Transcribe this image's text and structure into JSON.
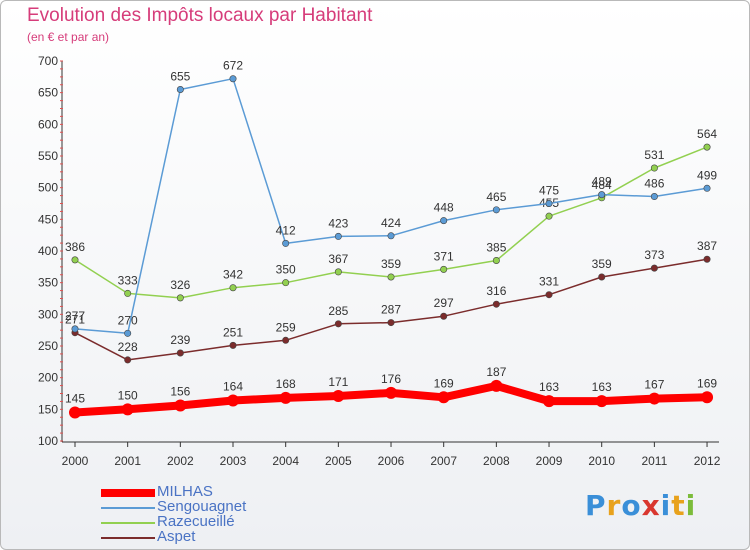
{
  "title": "Evolution des Impôts locaux par Habitant",
  "subtitle": "(en € et par an)",
  "logo": {
    "letters": [
      "P",
      "r",
      "o",
      "x",
      "i",
      "t",
      "i"
    ],
    "colors": [
      "#3a8fd8",
      "#e8a21c",
      "#3a8fd8",
      "#d9372f",
      "#3a8fd8",
      "#e8a21c",
      "#7cbc3a"
    ]
  },
  "chart_data": {
    "type": "line",
    "title": "Evolution des Impôts locaux par Habitant",
    "subtitle": "(en € et par an)",
    "xlabel": "",
    "ylabel": "",
    "x": [
      "2000",
      "2001",
      "2002",
      "2003",
      "2004",
      "2005",
      "2006",
      "2007",
      "2008",
      "2009",
      "2010",
      "2011",
      "2012"
    ],
    "ylim": [
      100,
      700
    ],
    "yticks": [
      "100",
      "150",
      "200",
      "250",
      "300",
      "350",
      "400",
      "450",
      "500",
      "550",
      "600",
      "650",
      "700"
    ],
    "grid": false,
    "legend_placement": "bottom-left",
    "series": [
      {
        "name": "MILHAS",
        "color": "#ff0000",
        "values": [
          145,
          150,
          156,
          164,
          168,
          171,
          176,
          169,
          187,
          163,
          163,
          167,
          169
        ]
      },
      {
        "name": "Sengouagnet",
        "color": "#5b9bd5",
        "values": [
          277,
          270,
          655,
          672,
          412,
          423,
          424,
          448,
          465,
          475,
          489,
          486,
          499
        ]
      },
      {
        "name": "Razecueillé",
        "color": "#92d050",
        "values": [
          386,
          333,
          326,
          342,
          350,
          367,
          359,
          371,
          385,
          455,
          484,
          531,
          564
        ]
      },
      {
        "name": "Aspet",
        "color": "#7b2c2c",
        "values": [
          271,
          228,
          239,
          251,
          259,
          285,
          287,
          297,
          316,
          331,
          359,
          373,
          387
        ]
      }
    ]
  }
}
